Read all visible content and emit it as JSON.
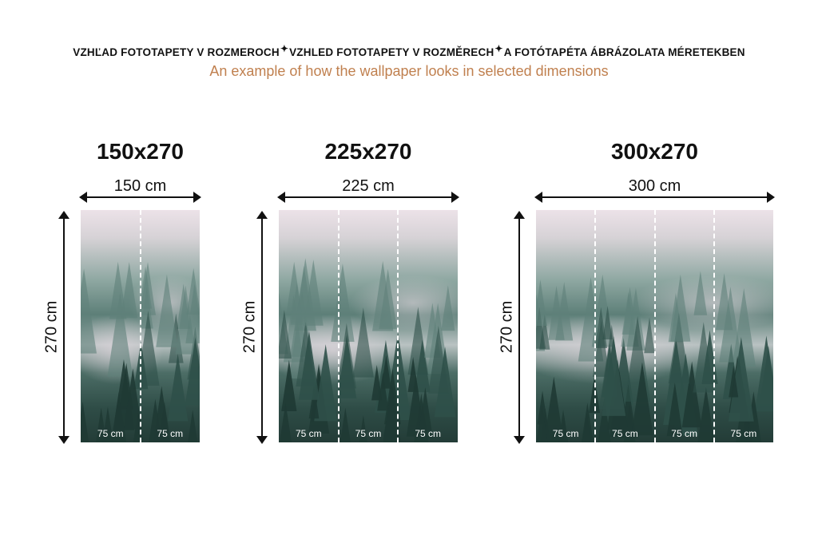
{
  "header": {
    "languages": [
      "VZHĽAD FOTOTAPETY V ROZMEROCH",
      "VZHLED FOTOTAPETY V ROZMĚRECH",
      "A FOTÓTAPÉTA ÁBRÁZOLATA MÉRETEKBEN"
    ],
    "separator_icon": "sparkle-icon",
    "subtitle": "An example of how the wallpaper looks in selected dimensions"
  },
  "colors": {
    "subtitle": "#c0804f"
  },
  "panels": [
    {
      "title": "150x270",
      "width_label": "150 cm",
      "height_label": "270 cm",
      "segments": [
        "75 cm",
        "75 cm"
      ]
    },
    {
      "title": "225x270",
      "width_label": "225 cm",
      "height_label": "270 cm",
      "segments": [
        "75 cm",
        "75 cm",
        "75 cm"
      ]
    },
    {
      "title": "300x270",
      "width_label": "300 cm",
      "height_label": "270 cm",
      "segments": [
        "75 cm",
        "75 cm",
        "75 cm",
        "75 cm"
      ]
    }
  ]
}
